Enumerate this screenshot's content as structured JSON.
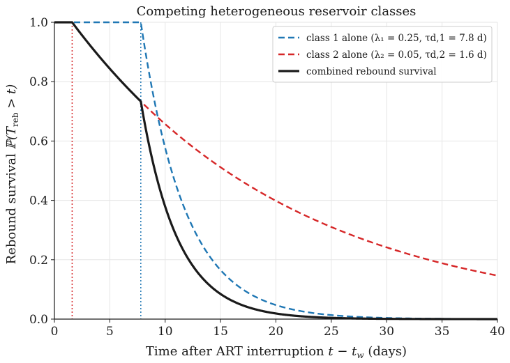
{
  "chart_data": {
    "type": "line",
    "title": "Competing heterogeneous reservoir classes",
    "xlabel": "Time after ART interruption  t − t_w  (days)",
    "xlabel_parts": {
      "prefix": "Time after ART interruption  ",
      "var": "t",
      "minus": " − ",
      "sub_var": "t",
      "sub": "w",
      "suffix": "  (days)"
    },
    "ylabel": "Rebound survival  ℙ(T_reb > t)",
    "ylabel_parts": {
      "prefix": "Rebound survival  ",
      "math": "ℙ(T",
      "sub": "reb",
      "suffix": " > t)"
    },
    "xlim": [
      0,
      40
    ],
    "ylim": [
      0,
      1.0
    ],
    "xticks": [
      0,
      5,
      10,
      15,
      20,
      25,
      30,
      35,
      40
    ],
    "xtick_labels": [
      "0",
      "5",
      "10",
      "15",
      "20",
      "25",
      "30",
      "35",
      "40"
    ],
    "yticks": [
      0,
      0.2,
      0.4,
      0.6,
      0.8,
      1.0
    ],
    "ytick_labels": [
      "0.0",
      "0.2",
      "0.4",
      "0.6",
      "0.8",
      "1.0"
    ],
    "grid": true,
    "legend_position": "top-right",
    "series": [
      {
        "name": "class 1 alone (λ₁ = 0.25,  τ_d,1 = 7.8 d)",
        "legend_label": "class 1 alone (λ₁ = 0.25,  τd,1 = 7.8 d)",
        "color": "#1f77b4",
        "style": "dashed",
        "model": {
          "delay": 7.8,
          "rate": 0.25
        },
        "x": [
          0,
          7.8,
          10,
          12,
          14,
          16,
          18,
          20,
          22,
          25,
          30,
          35,
          40
        ],
        "y": [
          1.0,
          1.0,
          0.577,
          0.35,
          0.212,
          0.129,
          0.078,
          0.047,
          0.029,
          0.014,
          0.004,
          0.001,
          0.0
        ]
      },
      {
        "name": "class 2 alone (λ₂ = 0.05,  τ_d,2 = 1.6 d)",
        "legend_label": "class 2 alone (λ₂ = 0.05,  τd,2 = 1.6 d)",
        "color": "#d62728",
        "style": "dashed",
        "model": {
          "delay": 1.6,
          "rate": 0.05
        },
        "x": [
          0,
          1.6,
          5,
          7.8,
          10,
          15,
          20,
          25,
          30,
          35,
          40
        ],
        "y": [
          1.0,
          1.0,
          0.844,
          0.733,
          0.657,
          0.512,
          0.399,
          0.311,
          0.242,
          0.189,
          0.147
        ]
      },
      {
        "name": "combined rebound survival",
        "legend_label": "combined rebound survival",
        "color": "#1a1a1a",
        "style": "solid",
        "model": {
          "combined": true
        },
        "x": [
          0,
          1.6,
          5,
          7.8,
          10,
          12,
          15,
          20,
          25,
          30,
          40
        ],
        "y": [
          1.0,
          1.0,
          0.844,
          0.733,
          0.379,
          0.203,
          0.066,
          0.019,
          0.004,
          0.001,
          0.0
        ]
      }
    ],
    "reference_lines": [
      {
        "x": 1.6,
        "color": "#d62728",
        "style": "dotted"
      },
      {
        "x": 7.8,
        "color": "#1f77b4",
        "style": "dotted"
      }
    ]
  }
}
